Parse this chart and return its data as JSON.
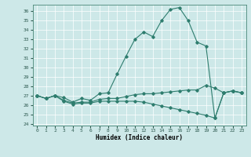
{
  "xlabel": "Humidex (Indice chaleur)",
  "ylabel": "",
  "bg_color": "#cde8e8",
  "line_color": "#2e7d6e",
  "grid_color": "#ffffff",
  "ylim": [
    23.8,
    36.7
  ],
  "xlim": [
    -0.5,
    23.5
  ],
  "yticks": [
    24,
    25,
    26,
    27,
    28,
    29,
    30,
    31,
    32,
    33,
    34,
    35,
    36
  ],
  "xticks": [
    0,
    1,
    2,
    3,
    4,
    5,
    6,
    7,
    8,
    9,
    10,
    11,
    12,
    13,
    14,
    15,
    16,
    17,
    18,
    19,
    20,
    21,
    22,
    23
  ],
  "xtick_labels": [
    "0",
    "1",
    "2",
    "3",
    "4",
    "5",
    "6",
    "7",
    "8",
    "9",
    "10",
    "11",
    "12",
    "13",
    "14",
    "15",
    "16",
    "17",
    "18",
    "19",
    "20",
    "21",
    "22",
    "23"
  ],
  "series": [
    [
      27.0,
      26.7,
      27.0,
      26.8,
      26.3,
      26.7,
      26.5,
      27.2,
      27.3,
      29.3,
      31.2,
      33.0,
      33.8,
      33.3,
      35.0,
      36.2,
      36.4,
      35.0,
      32.7,
      32.3,
      24.6,
      27.3,
      27.5,
      27.3
    ],
    [
      27.0,
      26.7,
      27.0,
      26.5,
      26.2,
      26.3,
      26.3,
      26.6,
      26.7,
      26.7,
      26.9,
      27.1,
      27.2,
      27.2,
      27.3,
      27.4,
      27.5,
      27.6,
      27.6,
      28.1,
      27.8,
      27.3,
      27.5,
      27.3
    ],
    [
      27.0,
      26.7,
      27.0,
      26.4,
      26.1,
      26.2,
      26.2,
      26.4,
      26.4,
      26.4,
      26.4,
      26.4,
      26.3,
      26.1,
      25.9,
      25.7,
      25.5,
      25.3,
      25.1,
      24.9,
      24.6,
      27.3,
      27.5,
      27.3
    ]
  ],
  "figsize": [
    3.2,
    2.0
  ],
  "dpi": 100
}
